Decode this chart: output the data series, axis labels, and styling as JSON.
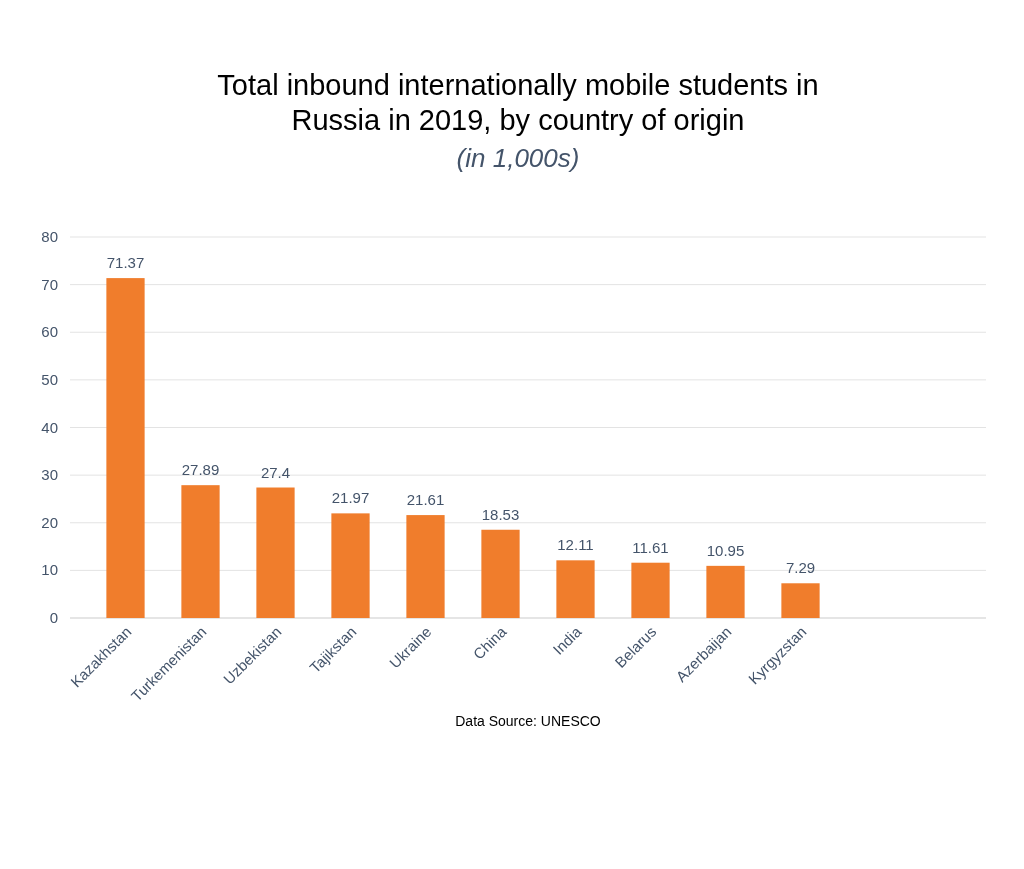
{
  "chart_data": {
    "type": "bar",
    "title": "Total inbound internationally mobile students in Russia in 2019, by country of origin",
    "subtitle": "(in 1,000s)",
    "categories": [
      "Kazakhstan",
      "Turkemenistan",
      "Uzbekistan",
      "Tajikstan",
      "Ukraine",
      "China",
      "India",
      "Belarus",
      "Azerbaijan",
      "Kyrgyzstan"
    ],
    "values": [
      71.37,
      27.89,
      27.4,
      21.97,
      21.61,
      18.53,
      12.11,
      11.61,
      10.95,
      7.29
    ],
    "color": "#f07d2c",
    "ylim": [
      0,
      80
    ],
    "yticks": [
      0,
      10,
      20,
      30,
      40,
      50,
      60,
      70,
      80
    ],
    "grid": "y",
    "data_labels": true,
    "annotations": [
      "Data Source: UNESCO"
    ]
  }
}
